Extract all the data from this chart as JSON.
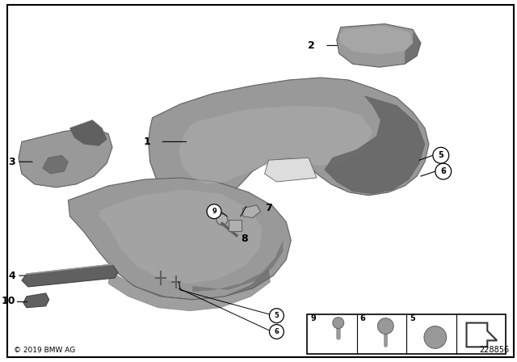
{
  "background_color": "#ffffff",
  "border_color": "#000000",
  "copyright_text": "© 2019 BMW AG",
  "part_number": "228856",
  "gray_main": "#8a8a8a",
  "gray_light": "#b0b0b0",
  "gray_dark": "#606060",
  "gray_med": "#999999",
  "gray_shad": "#707070"
}
